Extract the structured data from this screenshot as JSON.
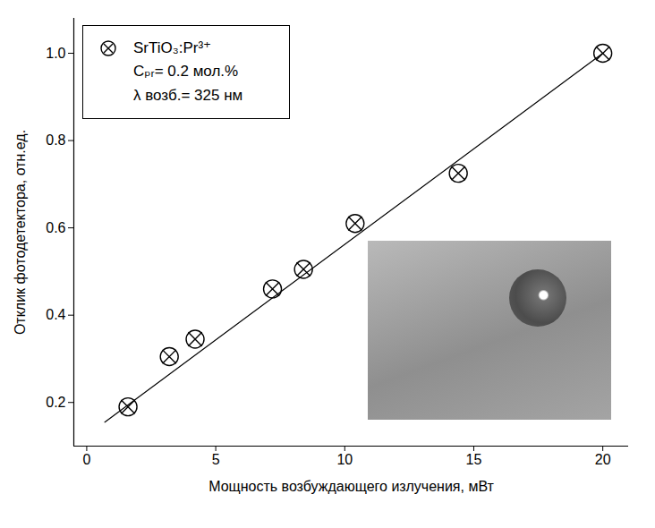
{
  "chart_data": {
    "type": "scatter",
    "xlabel": "Мощность возбуждающего излучения, мВт",
    "ylabel": "Отклик фотодетектора, отн.ед.",
    "xlim": [
      -0.5,
      21
    ],
    "ylim": [
      0.1,
      1.08
    ],
    "xticks": [
      0,
      5,
      10,
      15,
      20
    ],
    "yticks": [
      0.2,
      0.4,
      0.6,
      0.8,
      {
        "value": 1,
        "label": "1.0"
      }
    ],
    "grid": false,
    "legend": "top-left",
    "annotations": [
      "Cₚᵣ= 0.2 мол.%",
      "λ возб.= 325 нм"
    ],
    "series": [
      {
        "name": "SrTiO₃:Pr³⁺",
        "type": "scatter",
        "marker": "circle-x",
        "color": "#000000",
        "x": [
          1.6,
          3.2,
          4.2,
          7.2,
          8.4,
          10.4,
          14.4,
          20.0
        ],
        "values": [
          0.19,
          0.305,
          0.345,
          0.46,
          0.505,
          0.61,
          0.725,
          1.0
        ]
      },
      {
        "type": "line",
        "line_style": "solid",
        "color": "#000000",
        "x": [
          0.7,
          20.0
        ],
        "values": [
          0.155,
          1.0
        ]
      }
    ]
  }
}
